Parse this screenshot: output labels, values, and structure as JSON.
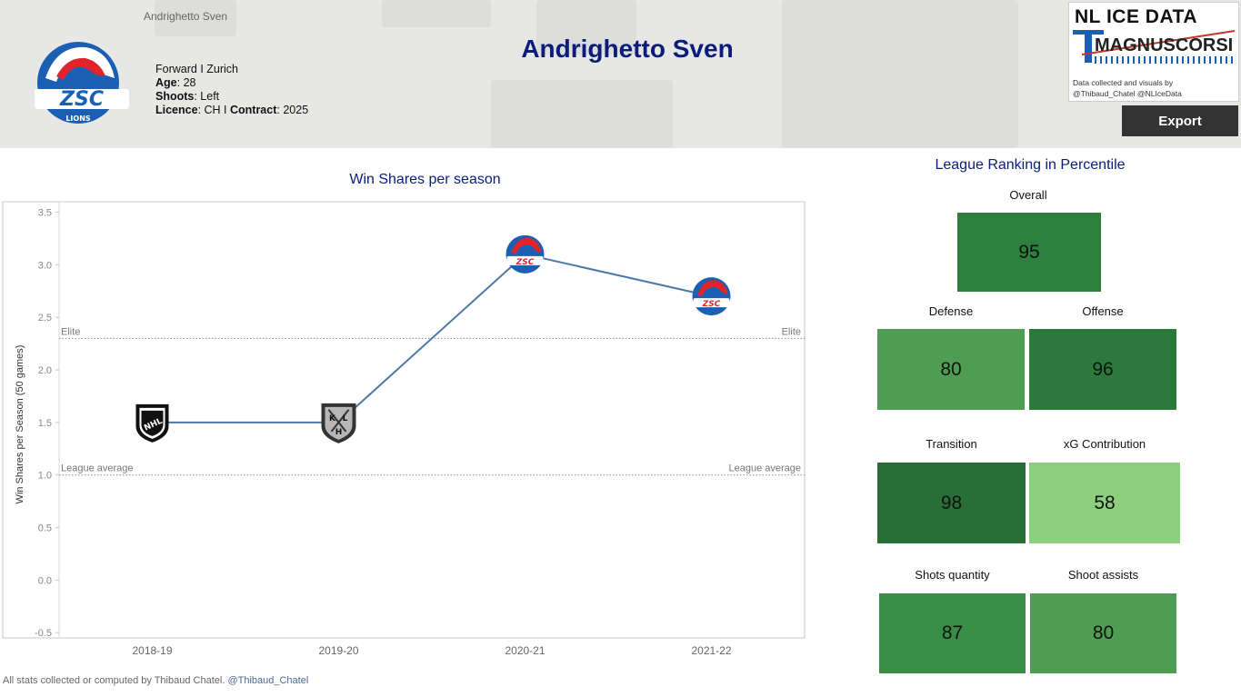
{
  "header": {
    "breadcrumb": "Andrighetto Sven",
    "title": "Andrighetto Sven",
    "position_team": "Forward I Zurich",
    "age_label": "Age",
    "age": ": 28",
    "shoots_label": "Shoots",
    "shoots": ": Left",
    "licence_label": "Licence",
    "licence": ": CH I ",
    "contract_label": "Contract",
    "contract": ": 2025",
    "team_logo_text": "ZSC",
    "team_logo_sub": "LIONS",
    "brand_name": "NL ICE DATA",
    "brand_sub": "MAGNUSCORSI",
    "brand_credit_line1": "Data collected and visuals by",
    "brand_credit_line2": "@Thibaud_Chatel @NLIceData",
    "export_label": "Export"
  },
  "chart_data": {
    "type": "line",
    "title": "Win Shares per season",
    "ylabel": "Win Shares per Season (50 games)",
    "xlabel": "",
    "categories": [
      "2018-19",
      "2019-20",
      "2020-21",
      "2021-22"
    ],
    "values": [
      1.5,
      1.5,
      3.1,
      2.7
    ],
    "point_icons": [
      "nhl-logo-icon",
      "khl-logo-icon",
      "zsc-logo-icon",
      "zsc-logo-icon"
    ],
    "ylim": [
      -0.55,
      3.6
    ],
    "yticks": [
      "-0.5",
      "0.0",
      "0.5",
      "1.0",
      "1.5",
      "2.0",
      "2.5",
      "3.0",
      "3.5"
    ],
    "reference_lines": [
      {
        "label": "Elite",
        "value": 2.3
      },
      {
        "label": "League average",
        "value": 1.0
      }
    ],
    "line_color": "#4e79a7",
    "grid": false
  },
  "ranking": {
    "title": "League Ranking in Percentile",
    "cells": [
      {
        "label": "Overall",
        "value": "95",
        "color": "#2d7f3d"
      },
      {
        "label": "Defense",
        "value": "80",
        "color": "#4f9d53"
      },
      {
        "label": "Offense",
        "value": "96",
        "color": "#2b7a3c"
      },
      {
        "label": "Transition",
        "value": "98",
        "color": "#276f37"
      },
      {
        "label": "xG Contribution",
        "value": "58",
        "color": "#8ccf7c"
      },
      {
        "label": "Shots quantity",
        "value": "87",
        "color": "#3a8d47"
      },
      {
        "label": "Shoot assists",
        "value": "80",
        "color": "#4f9d53"
      }
    ]
  },
  "footer": {
    "text": "All stats collected or computed by Thibaud Chatel. ",
    "handle": "@Thibaud_Chatel"
  }
}
